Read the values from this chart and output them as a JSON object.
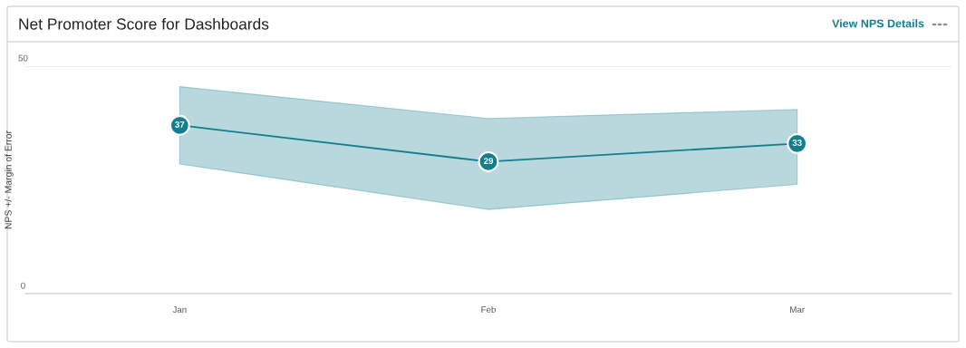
{
  "chart_data": {
    "type": "line",
    "title": "Net Promoter Score for Dashboards",
    "ylabel": "NPS +/- Margin of Error",
    "annotations": [
      "View NPS Details"
    ],
    "categories": [
      "Jan",
      "Feb",
      "Mar"
    ],
    "series": [
      {
        "color": "#137f8e",
        "values": [
          37,
          29,
          33
        ],
        "lower": [
          28.5,
          18.5,
          24
        ],
        "upper": [
          45.5,
          38.5,
          40.5
        ]
      }
    ],
    "ylim": [
      0,
      50
    ],
    "yticks": [
      0,
      50
    ],
    "grid": "y",
    "marker": "circle",
    "line_style": "solid",
    "data_labels": true
  }
}
